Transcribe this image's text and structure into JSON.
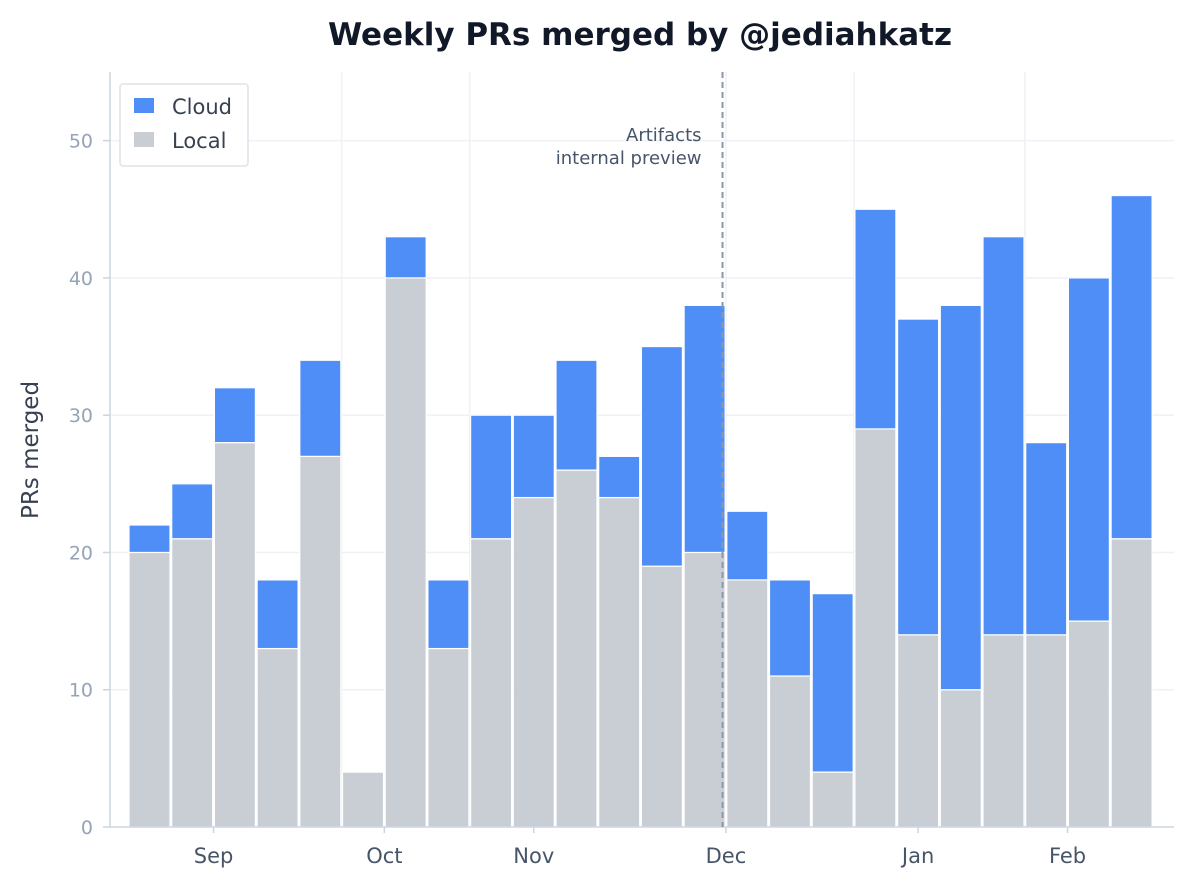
{
  "chart_data": {
    "type": "bar",
    "stacked": true,
    "title": "Weekly PRs merged by @jediahkatz",
    "xlabel": "",
    "ylabel": "PRs merged",
    "ylim": [
      0,
      55
    ],
    "yticks": [
      0,
      10,
      20,
      30,
      40,
      50
    ],
    "grid": true,
    "legend": "top-left",
    "x_tick_labels": [
      "Sep",
      "Oct",
      "Nov",
      "Dec",
      "Jan",
      "Feb"
    ],
    "x_tick_after_bar": [
      1.5,
      5.5,
      9,
      13.5,
      18,
      21.5
    ],
    "series": [
      {
        "name": "Local",
        "color": "#c9ced5",
        "values": [
          20,
          21,
          28,
          13,
          27,
          4,
          40,
          13,
          21,
          24,
          26,
          24,
          19,
          20,
          18,
          11,
          4,
          29,
          14,
          10,
          14,
          14,
          15,
          21
        ]
      },
      {
        "name": "Cloud",
        "color": "#4f8ef7",
        "values": [
          2,
          4,
          4,
          5,
          7,
          0,
          3,
          5,
          9,
          6,
          8,
          3,
          16,
          18,
          5,
          7,
          13,
          16,
          23,
          28,
          29,
          14,
          25,
          25
        ]
      }
    ],
    "annotation": {
      "lines": [
        "Artifacts",
        "internal preview"
      ],
      "at_bar": 13.9
    }
  }
}
